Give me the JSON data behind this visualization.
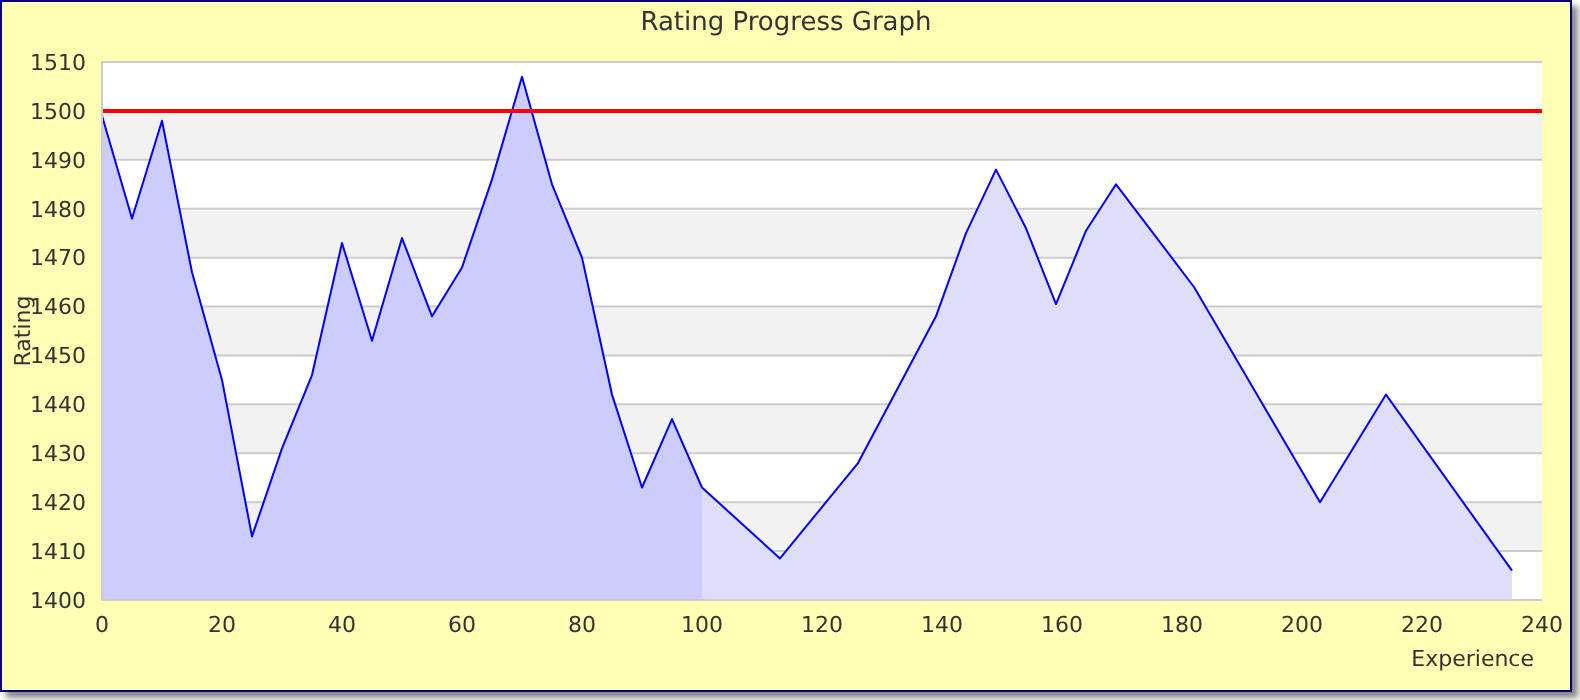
{
  "chart_data": {
    "type": "area",
    "title": "Rating Progress Graph",
    "xlabel": "Experience",
    "ylabel": "Rating",
    "series": [
      {
        "color": "#ccccff",
        "x": [
          0,
          5,
          10,
          15,
          20,
          25,
          30,
          35,
          40,
          45,
          50,
          55,
          60,
          65,
          70,
          75,
          80,
          85,
          90,
          95,
          100
        ],
        "values": [
          1499,
          1478,
          1498,
          1467,
          1445,
          1413,
          1431,
          1446,
          1473,
          1453,
          1474,
          1458,
          1468,
          1486,
          1507,
          1485,
          1470,
          1442,
          1423,
          1437,
          1423
        ]
      },
      {
        "color": "#dedefa",
        "x": [
          100,
          113,
          126,
          139,
          144,
          149,
          154,
          159,
          164,
          169,
          182,
          203,
          214,
          235
        ],
        "values": [
          1423,
          1408.5,
          1428,
          1458,
          1475,
          1488,
          1476,
          1460.5,
          1475.5,
          1485,
          1464,
          1420,
          1442,
          1406
        ]
      }
    ],
    "xlim": [
      0,
      240
    ],
    "xticks": [
      0,
      20,
      40,
      60,
      80,
      100,
      120,
      140,
      160,
      180,
      200,
      220,
      240
    ],
    "ylim": [
      1400,
      1510
    ],
    "yticks": [
      1400,
      1410,
      1420,
      1430,
      1440,
      1450,
      1460,
      1470,
      1480,
      1490,
      1500,
      1510
    ],
    "ref_lines": [
      {
        "axis": "y",
        "value": 1500,
        "color": "#ff0000"
      }
    ],
    "grid": "y"
  }
}
